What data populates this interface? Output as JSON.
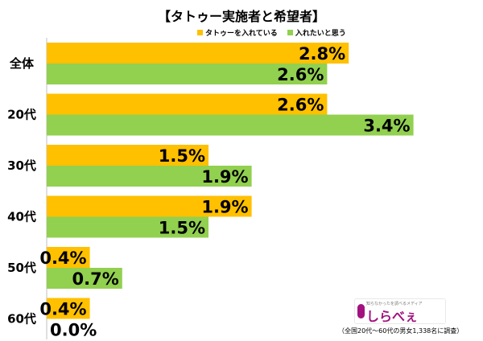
{
  "chart_data": {
    "type": "bar",
    "orientation": "horizontal",
    "title": "【タトゥー実施者と希望者】",
    "categories": [
      "全体",
      "20代",
      "30代",
      "40代",
      "50代",
      "60代"
    ],
    "series": [
      {
        "name": "タトゥーを入れている",
        "color": "#ffc000",
        "values": [
          2.8,
          2.6,
          1.5,
          1.9,
          0.4,
          0.4
        ],
        "labels": [
          "2.8%",
          "2.6%",
          "1.5%",
          "1.9%",
          "0.4%",
          "0.4%"
        ]
      },
      {
        "name": "入れたいと思う",
        "color": "#92d050",
        "values": [
          2.6,
          3.4,
          1.9,
          1.5,
          0.7,
          0.0
        ],
        "labels": [
          "2.6%",
          "3.4%",
          "1.9%",
          "1.5%",
          "0.7%",
          "0.0%"
        ]
      }
    ],
    "xlim": [
      0,
      3.4
    ],
    "grid": false,
    "legend_position": "top-center"
  },
  "footnote": "（全国20代～60代の男女1,338名に調査）",
  "logo": {
    "brand": "しらべぇ",
    "tagline": "知らなかったを調べるメディア",
    "color": "#a2127e"
  }
}
